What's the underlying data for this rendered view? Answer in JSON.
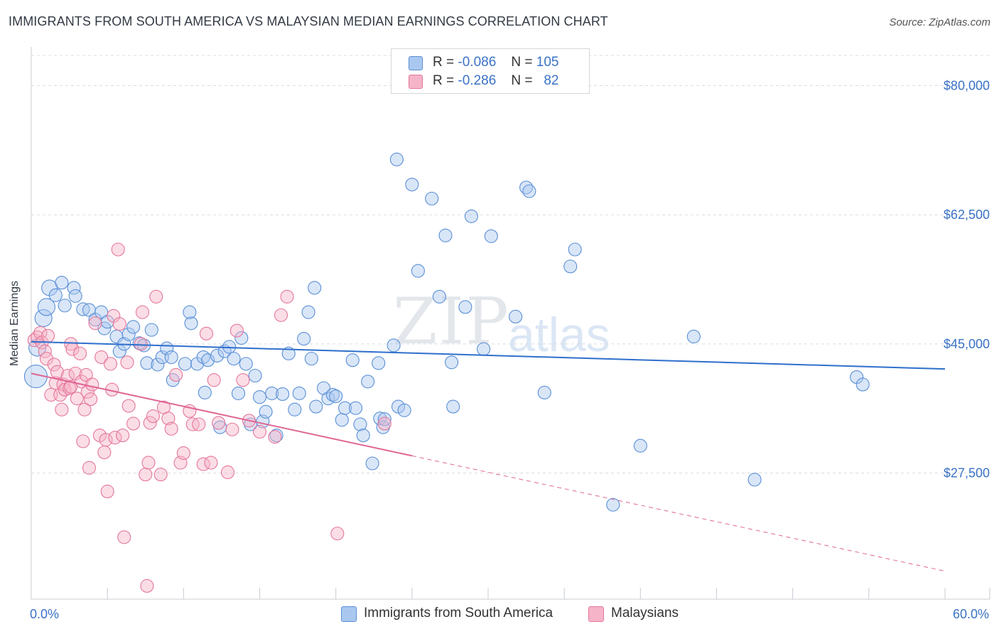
{
  "header": {
    "title": "IMMIGRANTS FROM SOUTH AMERICA VS MALAYSIAN MEDIAN EARNINGS CORRELATION CHART",
    "source": "Source: ZipAtlas.com"
  },
  "watermark": {
    "zip": "ZIP",
    "atlas": "atlas"
  },
  "legend": {
    "rows": [
      {
        "r_label": "R =",
        "r_value": "-0.086",
        "n_label": "N =",
        "n_value": "105",
        "color": "#aac8ef"
      },
      {
        "r_label": "R =",
        "r_value": "-0.286",
        "n_label": "N =",
        "n_value": "82",
        "color": "#f6b4c8"
      }
    ]
  },
  "bottom_legend": {
    "items": [
      {
        "label": "Immigrants from South America",
        "color": "#aac8ef"
      },
      {
        "label": "Malaysians",
        "color": "#f6b4c8"
      }
    ]
  },
  "colors": {
    "blue_fill": "#aac8ef",
    "blue_stroke": "#5a8fd6",
    "blue_line": "#2f6fcc",
    "pink_fill": "#f6b4c8",
    "pink_stroke": "#e4779b",
    "pink_line": "#e06694",
    "grid": "#d8dce2",
    "axis_text": "#3a72c6"
  },
  "chart_data": {
    "type": "scatter",
    "title": "IMMIGRANTS FROM SOUTH AMERICA VS MALAYSIAN MEDIAN EARNINGS CORRELATION CHART",
    "xlabel": "",
    "ylabel": "Median Earnings",
    "xlim": [
      0,
      60
    ],
    "ylim": [
      10000,
      85000
    ],
    "x_tick_labels": [
      {
        "value": 0,
        "label": "0.0%"
      },
      {
        "value": 60,
        "label": "60.0%"
      }
    ],
    "y_ticks": [
      {
        "value": 80000,
        "label": "$80,000"
      },
      {
        "value": 62500,
        "label": "$62,500"
      },
      {
        "value": 45000,
        "label": "$45,000"
      },
      {
        "value": 27500,
        "label": "$27,500"
      }
    ],
    "series": [
      {
        "name": "Immigrants from South America",
        "color": "#aac8ef",
        "R": -0.086,
        "N": 105,
        "trend": {
          "x": [
            0,
            60
          ],
          "y": [
            45300,
            41600
          ],
          "dashed_after": null
        },
        "points": [
          [
            0.3,
            40600,
            16
          ],
          [
            0.4,
            44500,
            12
          ],
          [
            0.8,
            48500,
            12
          ],
          [
            1.0,
            50000,
            12
          ],
          [
            1.2,
            52600,
            11
          ],
          [
            1.6,
            51600,
            9
          ],
          [
            2.0,
            53300,
            9
          ],
          [
            2.2,
            50200,
            9
          ],
          [
            2.8,
            52600,
            9
          ],
          [
            2.9,
            51500,
            9
          ],
          [
            3.4,
            49700,
            9
          ],
          [
            3.8,
            49600,
            9
          ],
          [
            4.2,
            48300,
            9
          ],
          [
            4.8,
            47100,
            9
          ],
          [
            4.6,
            49300,
            9
          ],
          [
            5.0,
            48000,
            9
          ],
          [
            5.6,
            46000,
            9
          ],
          [
            5.8,
            44000,
            9
          ],
          [
            6.1,
            45000,
            9
          ],
          [
            6.4,
            46300,
            9
          ],
          [
            6.7,
            47300,
            9
          ],
          [
            7.1,
            45100,
            9
          ],
          [
            7.4,
            44800,
            9
          ],
          [
            7.6,
            42400,
            9
          ],
          [
            7.9,
            46900,
            9
          ],
          [
            8.3,
            42200,
            9
          ],
          [
            8.6,
            43200,
            9
          ],
          [
            8.9,
            44400,
            9
          ],
          [
            9.2,
            43200,
            9
          ],
          [
            9.3,
            40100,
            9
          ],
          [
            10.1,
            42300,
            9
          ],
          [
            10.5,
            47800,
            9
          ],
          [
            10.4,
            49300,
            9
          ],
          [
            10.9,
            42300,
            9
          ],
          [
            11.3,
            43200,
            9
          ],
          [
            11.4,
            38400,
            9
          ],
          [
            11.6,
            42800,
            9
          ],
          [
            12.2,
            43400,
            9
          ],
          [
            12.4,
            33700,
            9
          ],
          [
            12.7,
            44000,
            9
          ],
          [
            13.0,
            44600,
            9
          ],
          [
            13.3,
            43000,
            9
          ],
          [
            13.6,
            38300,
            9
          ],
          [
            13.8,
            45800,
            9
          ],
          [
            14.1,
            42300,
            9
          ],
          [
            14.4,
            34100,
            9
          ],
          [
            14.7,
            40700,
            9
          ],
          [
            15.0,
            37800,
            9
          ],
          [
            15.2,
            34500,
            9
          ],
          [
            15.4,
            35800,
            9
          ],
          [
            15.8,
            38300,
            9
          ],
          [
            16.1,
            32600,
            9
          ],
          [
            16.5,
            38200,
            9
          ],
          [
            16.9,
            43700,
            9
          ],
          [
            17.3,
            36100,
            9
          ],
          [
            17.6,
            38300,
            9
          ],
          [
            17.9,
            45700,
            9
          ],
          [
            18.2,
            49300,
            9
          ],
          [
            18.4,
            43000,
            9
          ],
          [
            18.6,
            52600,
            9
          ],
          [
            18.7,
            36500,
            9
          ],
          [
            19.2,
            39000,
            9
          ],
          [
            19.5,
            37600,
            9
          ],
          [
            19.8,
            38100,
            9
          ],
          [
            20.0,
            37900,
            9
          ],
          [
            20.4,
            34700,
            9
          ],
          [
            20.6,
            36300,
            9
          ],
          [
            21.1,
            42800,
            9
          ],
          [
            21.3,
            36300,
            9
          ],
          [
            21.6,
            34100,
            9
          ],
          [
            21.8,
            32600,
            9
          ],
          [
            22.1,
            39900,
            9
          ],
          [
            22.4,
            28800,
            9
          ],
          [
            22.8,
            42400,
            9
          ],
          [
            22.9,
            34900,
            9
          ],
          [
            23.1,
            33700,
            9
          ],
          [
            23.2,
            34800,
            9
          ],
          [
            23.8,
            44800,
            9
          ],
          [
            24.1,
            36500,
            9
          ],
          [
            24.5,
            36000,
            9
          ],
          [
            24.0,
            70000,
            9
          ],
          [
            25.0,
            66600,
            9
          ],
          [
            25.4,
            54900,
            9
          ],
          [
            26.3,
            64700,
            9
          ],
          [
            26.8,
            51400,
            9
          ],
          [
            27.2,
            59700,
            9
          ],
          [
            27.6,
            42500,
            9
          ],
          [
            27.7,
            36500,
            9
          ],
          [
            28.5,
            50000,
            9
          ],
          [
            28.9,
            62300,
            9
          ],
          [
            29.7,
            44300,
            9
          ],
          [
            30.2,
            59600,
            9
          ],
          [
            31.8,
            48700,
            9
          ],
          [
            32.5,
            66200,
            9
          ],
          [
            32.7,
            65700,
            9
          ],
          [
            33.7,
            38400,
            9
          ],
          [
            35.4,
            55500,
            9
          ],
          [
            35.7,
            57800,
            9
          ],
          [
            38.2,
            23200,
            9
          ],
          [
            40.0,
            31200,
            9
          ],
          [
            43.5,
            46000,
            9
          ],
          [
            47.5,
            26600,
            9
          ],
          [
            54.2,
            40500,
            9
          ],
          [
            54.6,
            39500,
            9
          ]
        ]
      },
      {
        "name": "Malaysians",
        "color": "#f6b4c8",
        "R": -0.286,
        "N": 82,
        "trend": {
          "x": [
            0,
            60
          ],
          "y": [
            41000,
            14200
          ],
          "dashed_after": 25
        },
        "points": [
          [
            0.2,
            45500,
            9
          ],
          [
            0.4,
            45900,
            9
          ],
          [
            0.6,
            46500,
            9
          ],
          [
            0.7,
            45200,
            9
          ],
          [
            0.9,
            44000,
            9
          ],
          [
            1.0,
            43000,
            9
          ],
          [
            1.1,
            46100,
            9
          ],
          [
            1.3,
            38100,
            9
          ],
          [
            1.5,
            42200,
            9
          ],
          [
            1.6,
            39700,
            9
          ],
          [
            1.7,
            41200,
            9
          ],
          [
            1.9,
            38100,
            9
          ],
          [
            2.0,
            36100,
            9
          ],
          [
            2.1,
            39500,
            9
          ],
          [
            2.2,
            38800,
            9
          ],
          [
            2.4,
            40700,
            9
          ],
          [
            2.5,
            39000,
            9
          ],
          [
            2.6,
            45000,
            9
          ],
          [
            2.7,
            44300,
            9
          ],
          [
            2.9,
            41000,
            9
          ],
          [
            3.0,
            37600,
            9
          ],
          [
            3.2,
            43700,
            9
          ],
          [
            3.3,
            39900,
            9
          ],
          [
            3.4,
            31800,
            9
          ],
          [
            3.5,
            36100,
            9
          ],
          [
            3.6,
            40800,
            9
          ],
          [
            3.7,
            38500,
            9
          ],
          [
            3.8,
            28200,
            9
          ],
          [
            3.9,
            37500,
            9
          ],
          [
            4.0,
            39500,
            9
          ],
          [
            4.2,
            47800,
            9
          ],
          [
            4.5,
            32600,
            9
          ],
          [
            4.6,
            43200,
            9
          ],
          [
            4.8,
            30300,
            9
          ],
          [
            4.9,
            32000,
            9
          ],
          [
            5.0,
            25000,
            9
          ],
          [
            5.2,
            42300,
            9
          ],
          [
            5.3,
            38800,
            9
          ],
          [
            5.4,
            48800,
            9
          ],
          [
            5.5,
            32300,
            9
          ],
          [
            5.7,
            57800,
            9
          ],
          [
            5.8,
            47700,
            9
          ],
          [
            6.0,
            32600,
            9
          ],
          [
            6.1,
            18800,
            9
          ],
          [
            6.3,
            42500,
            9
          ],
          [
            6.4,
            36600,
            9
          ],
          [
            6.7,
            34200,
            9
          ],
          [
            7.2,
            45000,
            9
          ],
          [
            7.3,
            49300,
            9
          ],
          [
            7.5,
            27300,
            9
          ],
          [
            7.7,
            28900,
            9
          ],
          [
            7.8,
            34300,
            9
          ],
          [
            8.0,
            35200,
            9
          ],
          [
            8.2,
            51400,
            9
          ],
          [
            8.5,
            27300,
            9
          ],
          [
            8.7,
            36400,
            9
          ],
          [
            9.0,
            34900,
            9
          ],
          [
            9.2,
            33500,
            9
          ],
          [
            9.5,
            40800,
            9
          ],
          [
            9.8,
            28900,
            9
          ],
          [
            10.0,
            30200,
            9
          ],
          [
            10.4,
            35900,
            9
          ],
          [
            10.6,
            34100,
            9
          ],
          [
            11.0,
            34100,
            9
          ],
          [
            11.3,
            28700,
            9
          ],
          [
            11.5,
            46400,
            9
          ],
          [
            11.8,
            28900,
            9
          ],
          [
            12.0,
            40100,
            9
          ],
          [
            12.3,
            34300,
            9
          ],
          [
            12.9,
            27600,
            9
          ],
          [
            13.2,
            33400,
            9
          ],
          [
            13.5,
            46800,
            9
          ],
          [
            13.9,
            40100,
            9
          ],
          [
            14.3,
            34600,
            9
          ],
          [
            15.0,
            33100,
            9
          ],
          [
            16.0,
            32400,
            9
          ],
          [
            16.4,
            48900,
            9
          ],
          [
            16.8,
            51400,
            9
          ],
          [
            20.1,
            19300,
            9
          ],
          [
            23.2,
            34200,
            9
          ],
          [
            7.6,
            12200,
            9
          ],
          [
            2.6,
            39200,
            9
          ]
        ]
      }
    ]
  }
}
